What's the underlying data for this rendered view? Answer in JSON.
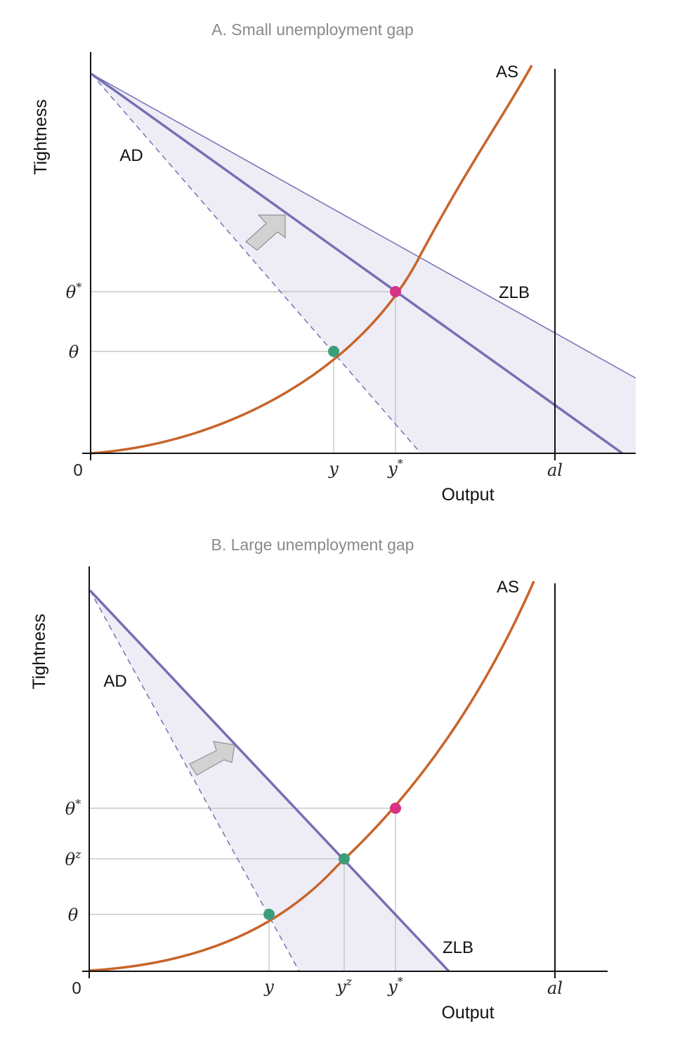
{
  "panels": [
    {
      "title": "A. Small unemployment gap",
      "xlabel": "Output",
      "ylabel": "Tightness",
      "labels": {
        "as": "AS",
        "ad": "AD",
        "zlb": "ZLB"
      },
      "x_ticks": [
        {
          "base": "0",
          "sup": "",
          "italic": false
        },
        {
          "base": "y",
          "sup": "",
          "italic": true
        },
        {
          "base": "y",
          "sup": "*",
          "italic": true
        },
        {
          "base": "al",
          "sup": "",
          "italic": true
        }
      ],
      "y_ticks": [
        {
          "base": "θ",
          "sup": "*"
        },
        {
          "base": "θ",
          "sup": ""
        }
      ]
    },
    {
      "title": "B. Large unemployment gap",
      "xlabel": "Output",
      "ylabel": "Tightness",
      "labels": {
        "as": "AS",
        "ad": "AD",
        "zlb": "ZLB"
      },
      "x_ticks": [
        {
          "base": "0",
          "sup": "",
          "italic": false
        },
        {
          "base": "y",
          "sup": "",
          "italic": true
        },
        {
          "base": "y",
          "sup": "z",
          "italic": true
        },
        {
          "base": "y",
          "sup": "*",
          "italic": true
        },
        {
          "base": "al",
          "sup": "",
          "italic": true
        }
      ],
      "y_ticks": [
        {
          "base": "θ",
          "sup": "*"
        },
        {
          "base": "θ",
          "sup": "z"
        },
        {
          "base": "θ",
          "sup": ""
        }
      ]
    }
  ],
  "colors": {
    "as_curve": "#c8642a",
    "ad_line": "#7570b3",
    "shade": "#eeedf6",
    "optimum_point": "#d63384",
    "equilibrium_point": "#3a9e7a",
    "arrow": "#d2d2d2"
  }
}
